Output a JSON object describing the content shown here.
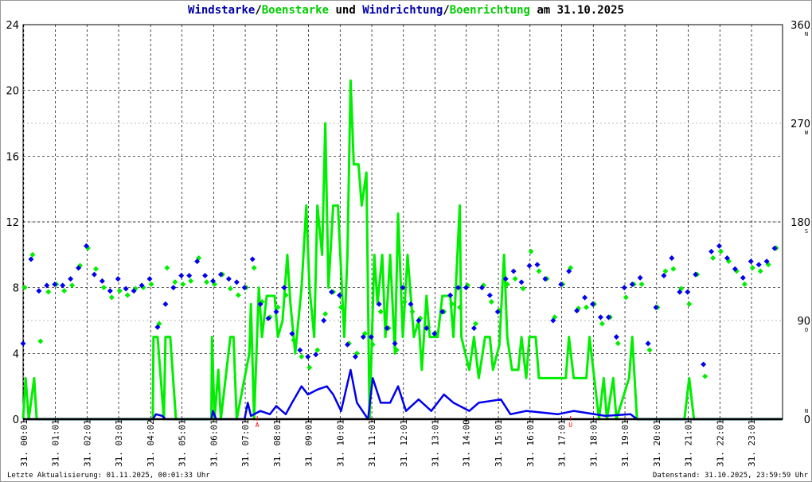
{
  "title": {
    "part1": "Windstarke",
    "sep1": "/",
    "part2": "Boenstarke",
    "mid": " und ",
    "part3": "Windrichtung",
    "sep2": "/",
    "part4": "Boenrichtung",
    "end": " am 31.10.2025"
  },
  "footer": {
    "left": "Letzte Aktualisierung: 01.11.2025, 00:01:33 Uhr",
    "right": "Datenstand: 31.10.2025, 23:59:59 Uhr"
  },
  "colors": {
    "wind": "#0000ee",
    "gust": "#00ee00",
    "title_blue": "#0000aa",
    "title_green": "#00cc00",
    "marker": "#ff0000"
  },
  "chart_data": {
    "type": "line",
    "title": "Windstarke/Boenstarke und Windrichtung/Boenrichtung am 31.10.2025",
    "ylim": [
      0,
      24
    ],
    "yticks": [
      "0",
      "4",
      "8",
      "12",
      "16",
      "20",
      "24"
    ],
    "y2lim": [
      0,
      360
    ],
    "y2ticks": [
      {
        "v": 0,
        "label": "0",
        "dir": "N"
      },
      {
        "v": 90,
        "label": "90",
        "dir": "O"
      },
      {
        "v": 180,
        "label": "180",
        "dir": "S"
      },
      {
        "v": 270,
        "label": "270",
        "dir": "W"
      },
      {
        "v": 360,
        "label": "360",
        "dir": "N"
      }
    ],
    "xlim_hours": [
      0,
      24
    ],
    "xticks": [
      {
        "h": 0.02,
        "label": "31. 00:01"
      },
      {
        "h": 1.02,
        "label": "31. 01:01"
      },
      {
        "h": 2.02,
        "label": "31. 02:01"
      },
      {
        "h": 3.02,
        "label": "31. 03:01"
      },
      {
        "h": 4.03,
        "label": "31. 04:02"
      },
      {
        "h": 5.02,
        "label": "31. 05:01"
      },
      {
        "h": 6.02,
        "label": "31. 06:01"
      },
      {
        "h": 7.02,
        "label": "31. 07:01"
      },
      {
        "h": 8.02,
        "label": "31. 08:01"
      },
      {
        "h": 9.02,
        "label": "31. 09:01"
      },
      {
        "h": 10.02,
        "label": "31. 10:01"
      },
      {
        "h": 11.02,
        "label": "31. 11:01"
      },
      {
        "h": 12.02,
        "label": "31. 12:01"
      },
      {
        "h": 13.02,
        "label": "31. 13:01"
      },
      {
        "h": 14.0,
        "label": "31. 14:00"
      },
      {
        "h": 15.02,
        "label": "31. 15:01"
      },
      {
        "h": 16.02,
        "label": "31. 16:01"
      },
      {
        "h": 17.02,
        "label": "31. 17:01"
      },
      {
        "h": 18.02,
        "label": "31. 18:01"
      },
      {
        "h": 19.02,
        "label": "31. 19:01"
      },
      {
        "h": 20.02,
        "label": "31. 20:01"
      },
      {
        "h": 21.02,
        "label": "31. 21:01"
      },
      {
        "h": 22.02,
        "label": "31. 22:01"
      },
      {
        "h": 23.02,
        "label": "31. 23:01"
      }
    ],
    "markers": [
      {
        "h": 7.4,
        "label": "A"
      },
      {
        "h": 17.3,
        "label": "U"
      }
    ],
    "series": [
      {
        "name": "Boenstarke",
        "points": [
          [
            0,
            0
          ],
          [
            0.08,
            2.5
          ],
          [
            0.18,
            0
          ],
          [
            0.35,
            2.5
          ],
          [
            0.43,
            0
          ],
          [
            4.1,
            0
          ],
          [
            4.12,
            5
          ],
          [
            4.25,
            5
          ],
          [
            4.33,
            3
          ],
          [
            4.45,
            0
          ],
          [
            4.5,
            5
          ],
          [
            4.65,
            5
          ],
          [
            4.83,
            0
          ],
          [
            5.95,
            0
          ],
          [
            5.97,
            5
          ],
          [
            6.05,
            0
          ],
          [
            6.17,
            3
          ],
          [
            6.25,
            0
          ],
          [
            6.55,
            5
          ],
          [
            6.65,
            5
          ],
          [
            6.75,
            0
          ],
          [
            7.15,
            4
          ],
          [
            7.2,
            7
          ],
          [
            7.3,
            0
          ],
          [
            7.45,
            8
          ],
          [
            7.55,
            5
          ],
          [
            7.7,
            7.5
          ],
          [
            7.95,
            7.5
          ],
          [
            8.05,
            5
          ],
          [
            8.2,
            6
          ],
          [
            8.35,
            10
          ],
          [
            8.45,
            7
          ],
          [
            8.6,
            4
          ],
          [
            8.8,
            8
          ],
          [
            8.95,
            13
          ],
          [
            9.05,
            8
          ],
          [
            9.2,
            5
          ],
          [
            9.3,
            13
          ],
          [
            9.45,
            10
          ],
          [
            9.55,
            18
          ],
          [
            9.65,
            8
          ],
          [
            9.8,
            13
          ],
          [
            9.95,
            13
          ],
          [
            10.05,
            9
          ],
          [
            10.15,
            5
          ],
          [
            10.25,
            10
          ],
          [
            10.35,
            20.6
          ],
          [
            10.45,
            15.5
          ],
          [
            10.6,
            15.5
          ],
          [
            10.7,
            13
          ],
          [
            10.85,
            15
          ],
          [
            10.95,
            0
          ],
          [
            11.1,
            10
          ],
          [
            11.2,
            7
          ],
          [
            11.35,
            10
          ],
          [
            11.45,
            5
          ],
          [
            11.6,
            10
          ],
          [
            11.75,
            4
          ],
          [
            11.85,
            12.5
          ],
          [
            12,
            5
          ],
          [
            12.15,
            10
          ],
          [
            12.35,
            5
          ],
          [
            12.5,
            6
          ],
          [
            12.6,
            3
          ],
          [
            12.75,
            7.5
          ],
          [
            12.85,
            5
          ],
          [
            13.1,
            5
          ],
          [
            13.25,
            7.5
          ],
          [
            13.5,
            7.5
          ],
          [
            13.6,
            5
          ],
          [
            13.8,
            13
          ],
          [
            13.85,
            5
          ],
          [
            14.1,
            3
          ],
          [
            14.25,
            5
          ],
          [
            14.4,
            2.5
          ],
          [
            14.6,
            5
          ],
          [
            14.75,
            5
          ],
          [
            14.85,
            3
          ],
          [
            15.05,
            4.5
          ],
          [
            15.2,
            10
          ],
          [
            15.3,
            5
          ],
          [
            15.45,
            3
          ],
          [
            15.65,
            3
          ],
          [
            15.75,
            5
          ],
          [
            15.9,
            2.5
          ],
          [
            16,
            5
          ],
          [
            16.2,
            5
          ],
          [
            16.3,
            2.5
          ],
          [
            17.15,
            2.5
          ],
          [
            17.25,
            5
          ],
          [
            17.4,
            2.5
          ],
          [
            17.8,
            2.5
          ],
          [
            17.9,
            5
          ],
          [
            18.05,
            2.5
          ],
          [
            18.2,
            0
          ],
          [
            18.35,
            2.5
          ],
          [
            18.45,
            0
          ],
          [
            18.65,
            2.5
          ],
          [
            18.75,
            0
          ],
          [
            19.15,
            2.5
          ],
          [
            19.25,
            5
          ],
          [
            19.4,
            0
          ],
          [
            20.9,
            0
          ],
          [
            21.05,
            2.5
          ],
          [
            21.2,
            0
          ],
          [
            24,
            0
          ]
        ]
      },
      {
        "name": "Windstarke",
        "points": [
          [
            0,
            0
          ],
          [
            4.1,
            0
          ],
          [
            4.2,
            0.3
          ],
          [
            4.4,
            0.2
          ],
          [
            4.5,
            0
          ],
          [
            5.95,
            0
          ],
          [
            6,
            0.5
          ],
          [
            6.1,
            0
          ],
          [
            7,
            0
          ],
          [
            7.1,
            1
          ],
          [
            7.2,
            0.2
          ],
          [
            7.5,
            0.5
          ],
          [
            7.8,
            0.3
          ],
          [
            8,
            0.8
          ],
          [
            8.3,
            0.3
          ],
          [
            8.5,
            1
          ],
          [
            8.8,
            2
          ],
          [
            9,
            1.5
          ],
          [
            9.3,
            1.8
          ],
          [
            9.6,
            2
          ],
          [
            9.8,
            1.5
          ],
          [
            10.05,
            0.5
          ],
          [
            10.35,
            3
          ],
          [
            10.55,
            1
          ],
          [
            10.9,
            0
          ],
          [
            11.05,
            2.5
          ],
          [
            11.3,
            1
          ],
          [
            11.6,
            1
          ],
          [
            11.85,
            2
          ],
          [
            12.1,
            0.5
          ],
          [
            12.5,
            1.2
          ],
          [
            12.9,
            0.5
          ],
          [
            13.3,
            1.5
          ],
          [
            13.6,
            1
          ],
          [
            14.1,
            0.5
          ],
          [
            14.4,
            1
          ],
          [
            15.1,
            1.2
          ],
          [
            15.4,
            0.3
          ],
          [
            15.9,
            0.5
          ],
          [
            16.9,
            0.3
          ],
          [
            17.4,
            0.5
          ],
          [
            18.4,
            0.2
          ],
          [
            19.2,
            0.3
          ],
          [
            19.4,
            0
          ],
          [
            24,
            0
          ]
        ]
      },
      {
        "name": "Windrichtung",
        "interval_hours": 0.25,
        "values_deg": [
          69,
          146,
          117,
          122,
          123,
          122,
          128,
          138,
          158,
          132,
          126,
          117,
          128,
          119,
          117,
          122,
          128,
          84,
          105,
          120,
          131,
          131,
          144,
          131,
          126,
          132,
          128,
          125,
          120,
          146,
          105,
          92,
          98,
          120,
          78,
          63,
          57,
          59,
          90,
          116,
          113,
          68,
          57,
          75,
          75,
          105,
          83,
          69,
          120,
          105,
          90,
          83,
          78,
          98,
          113,
          120,
          120,
          83,
          120,
          113,
          98,
          128,
          135,
          125,
          140,
          141,
          128,
          90,
          123,
          135,
          99,
          111,
          105,
          93,
          93,
          75,
          120,
          123,
          129,
          69,
          102,
          131,
          147,
          116,
          116,
          132,
          50,
          153,
          158,
          147,
          137,
          129,
          144,
          141,
          144,
          156
        ]
      },
      {
        "name": "Boenrichtung",
        "interval_hours": 0.25,
        "values_deg": [
          123,
          153,
          74,
          119,
          126,
          120,
          125,
          143,
          159,
          140,
          123,
          114,
          120,
          116,
          122,
          123,
          126,
          90,
          141,
          128,
          126,
          129,
          150,
          128,
          126,
          135,
          122,
          116,
          123,
          141,
          110,
          96,
          105,
          116,
          75,
          60,
          50,
          66,
          99,
          119,
          105,
          72,
          63,
          81,
          71,
          101,
          86,
          66,
          110,
          101,
          95,
          87,
          81,
          101,
          108,
          105,
          125,
          90,
          125,
          110,
          102,
          126,
          131,
          122,
          156,
          138,
          131,
          96,
          126,
          141,
          104,
          105,
          108,
          90,
          96,
          72,
          114,
          126,
          126,
          66,
          105,
          138,
          140,
          122,
          108,
          135,
          42,
          150,
          156,
          147,
          138,
          126,
          141,
          138,
          144,
          159
        ]
      }
    ]
  }
}
